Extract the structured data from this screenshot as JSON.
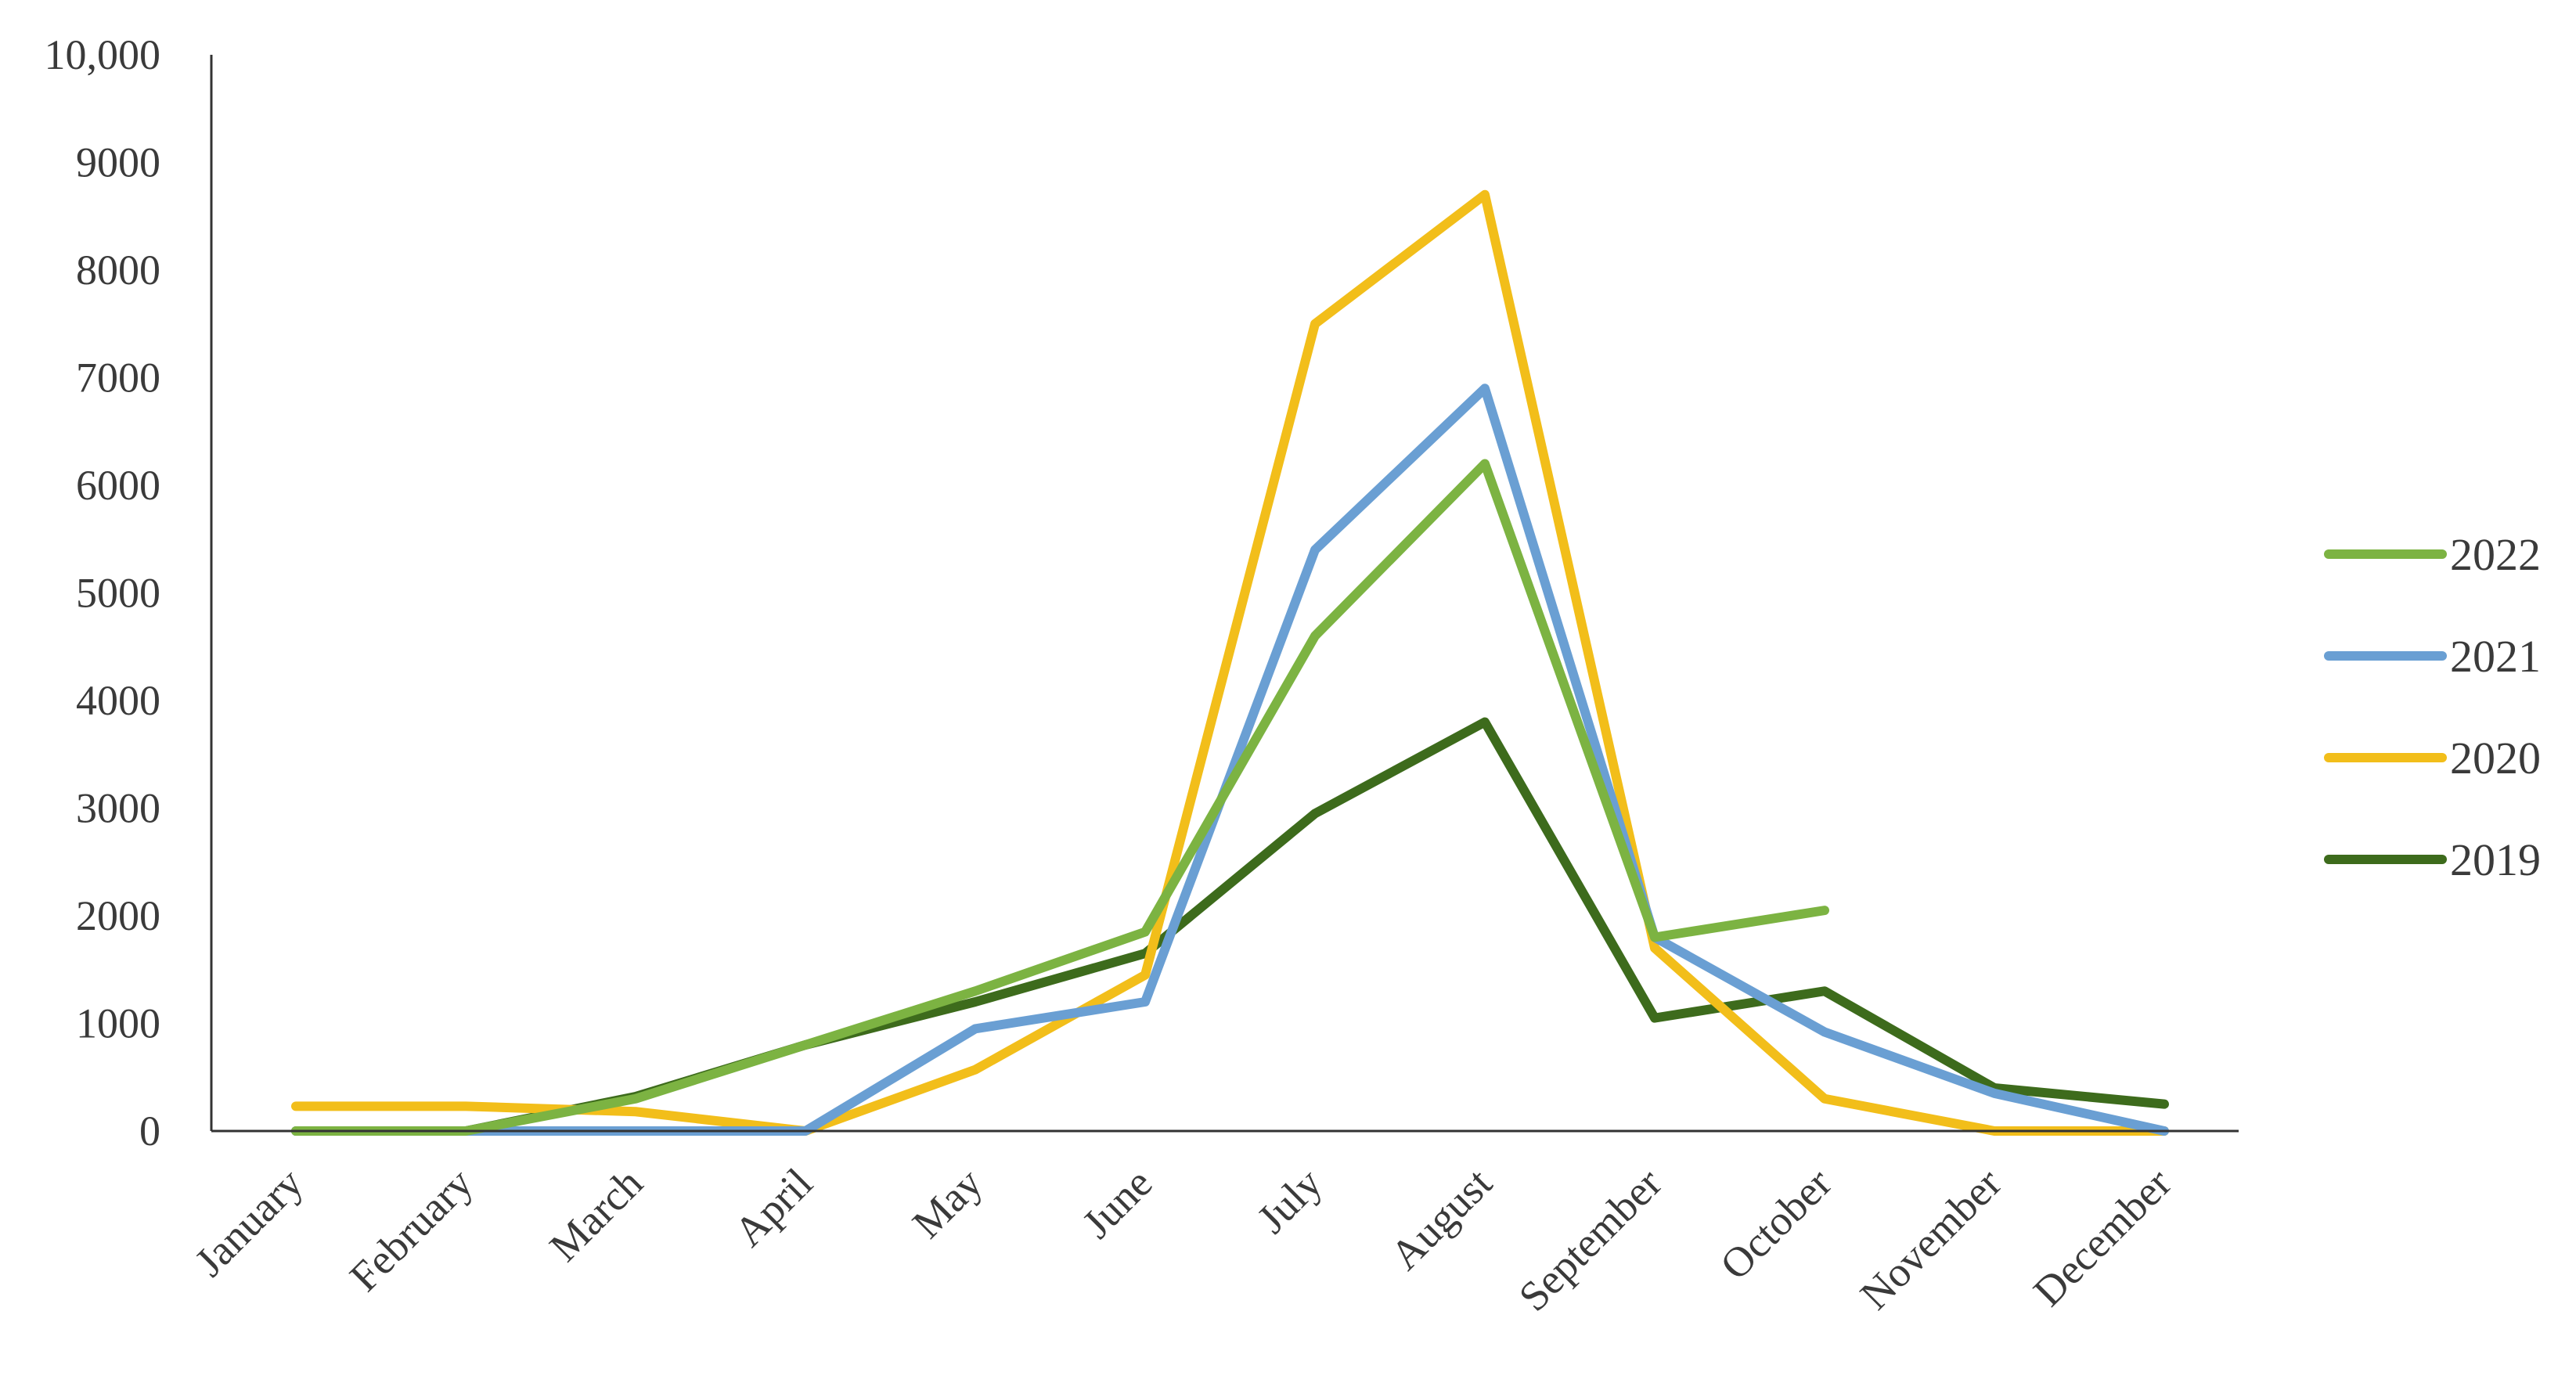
{
  "chart_data": {
    "type": "line",
    "title": "",
    "xlabel": "",
    "ylabel": "",
    "categories": [
      "January",
      "February",
      "March",
      "April",
      "May",
      "June",
      "July",
      "August",
      "September",
      "October",
      "November",
      "December"
    ],
    "ylim": [
      0,
      10000
    ],
    "yticks": [
      0,
      1000,
      2000,
      3000,
      4000,
      5000,
      6000,
      7000,
      8000,
      9000,
      10000
    ],
    "ytick_labels": [
      "0",
      "1000",
      "2000",
      "3000",
      "4000",
      "5000",
      "6000",
      "7000",
      "8000",
      "9000",
      "10,000"
    ],
    "grid": false,
    "legend": "right",
    "series": [
      {
        "name": "2022",
        "color": "#7cb342",
        "values": [
          0,
          0,
          300,
          800,
          1300,
          1850,
          4600,
          6200,
          1800,
          2050,
          null,
          null
        ]
      },
      {
        "name": "2021",
        "color": "#6a9fd3",
        "values": [
          0,
          0,
          0,
          0,
          950,
          1200,
          5400,
          6900,
          1800,
          920,
          350,
          0
        ]
      },
      {
        "name": "2020",
        "color": "#f2be1a",
        "values": [
          230,
          230,
          180,
          0,
          570,
          1450,
          7500,
          8700,
          1700,
          300,
          0,
          0
        ]
      },
      {
        "name": "2019",
        "color": "#3d6b1c",
        "values": [
          0,
          0,
          320,
          800,
          1200,
          1650,
          2950,
          3800,
          1050,
          1300,
          400,
          250
        ]
      }
    ]
  }
}
